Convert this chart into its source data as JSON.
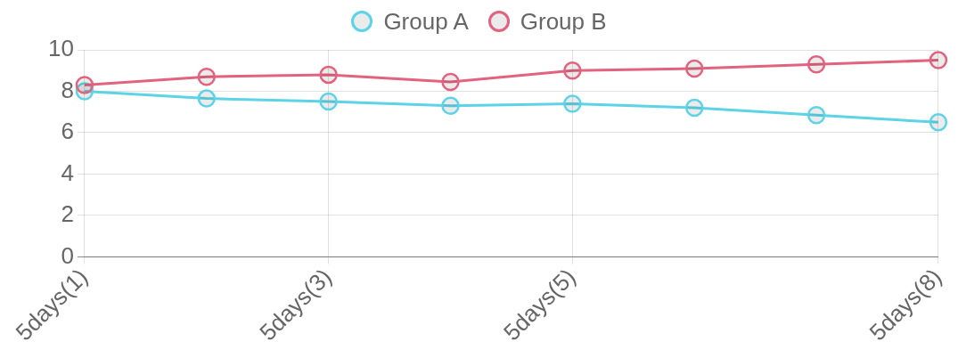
{
  "chart_data": {
    "type": "line",
    "categories": [
      "5days(1)",
      null,
      "5days(3)",
      null,
      "5days(5)",
      null,
      null,
      "5days(8)"
    ],
    "series": [
      {
        "name": "Group A",
        "color": "#5dd3e8",
        "values": [
          8.0,
          7.65,
          7.5,
          7.3,
          7.4,
          7.2,
          6.85,
          6.5
        ]
      },
      {
        "name": "Group B",
        "color": "#e2637f",
        "values": [
          8.3,
          8.7,
          8.8,
          8.45,
          9.0,
          9.1,
          9.3,
          9.5
        ]
      }
    ],
    "ylim": [
      0,
      10
    ],
    "yticks": [
      0,
      2,
      4,
      6,
      8,
      10
    ],
    "grid": true,
    "legend": "top",
    "marker": "circle",
    "line_style": "solid"
  }
}
